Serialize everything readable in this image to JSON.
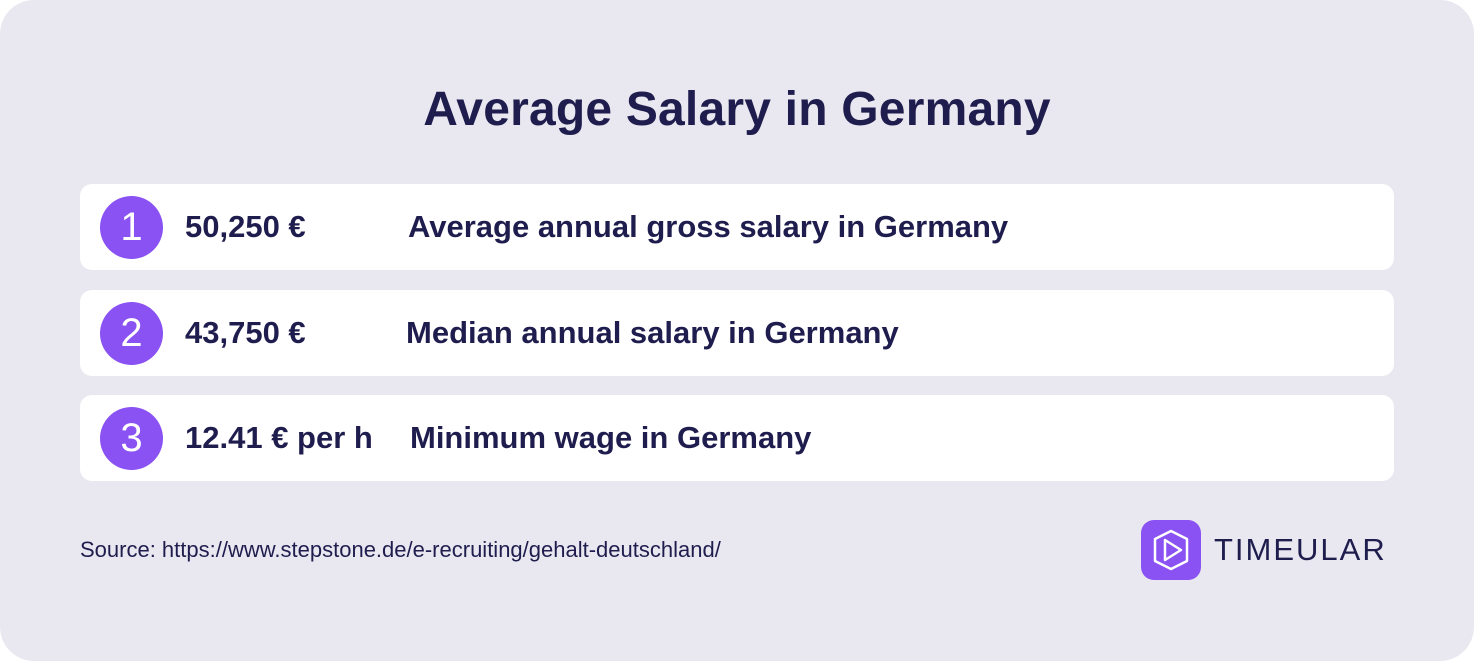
{
  "title": "Average Salary in Germany",
  "rows": [
    {
      "number": "1",
      "value": "50,250 €",
      "description": "Average annual gross salary in Germany"
    },
    {
      "number": "2",
      "value": "43,750 €",
      "description": "Median annual salary in Germany"
    },
    {
      "number": "3",
      "value": "12.41 € per h",
      "description": "Minimum wage in Germany"
    }
  ],
  "source": "Source: https://www.stepstone.de/e-recruiting/gehalt-deutschland/",
  "logo": {
    "text": "TIMEULAR",
    "icon": "play-hexagon-icon"
  },
  "colors": {
    "accent": "#8a51f3",
    "text": "#1f1d4e",
    "background": "#e9e8f0",
    "row_background": "#ffffff"
  }
}
